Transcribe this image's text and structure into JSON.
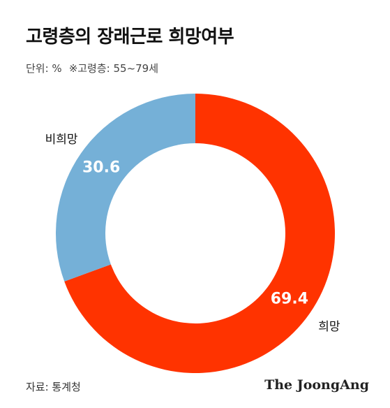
{
  "title": "고령층의 장래근로 희망여부",
  "subtitle": {
    "unit": "단위: %",
    "note": "※고령층: 55~79세"
  },
  "chart_data": {
    "type": "pie",
    "title": "고령층의 장래근로 희망여부",
    "categories": [
      "희망",
      "비희망"
    ],
    "values": [
      69.4,
      30.6
    ],
    "value_labels": [
      "69.4",
      "30.6"
    ],
    "colors": [
      "#ff3300",
      "#75b0d7"
    ],
    "donut": true
  },
  "footer": {
    "source": "자료: 통계청",
    "logo": "The JoongAng"
  }
}
